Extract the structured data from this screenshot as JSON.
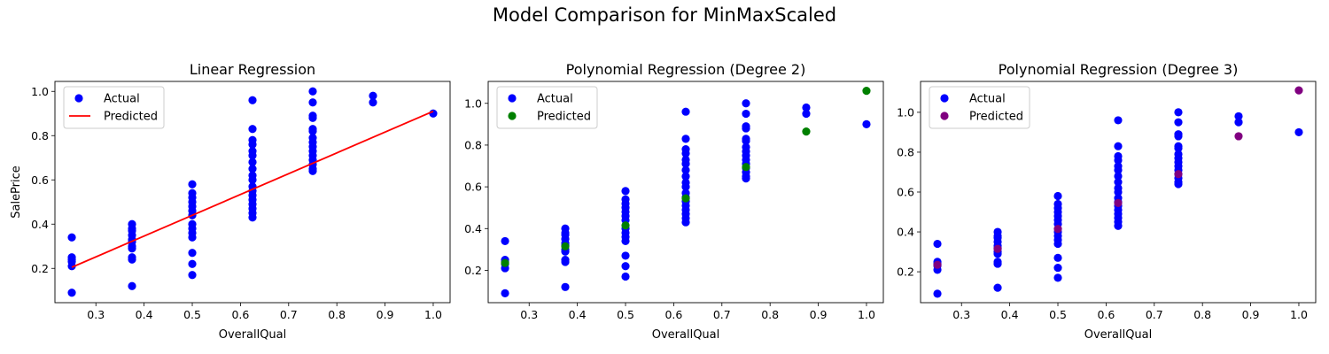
{
  "figure": {
    "suptitle": "Model Comparison for MinMaxScaled"
  },
  "colors": {
    "actual": "#0000ff",
    "linear_predicted": "#ff0000",
    "poly2_predicted": "#008000",
    "poly3_predicted": "#800080"
  },
  "chart_data": [
    {
      "type": "scatter",
      "title": "Linear Regression",
      "xlabel": "OverallQual",
      "ylabel": "SalePrice",
      "xlim": [
        0.215,
        1.035
      ],
      "ylim": [
        0.045,
        1.045
      ],
      "xticks": [
        "0.3",
        "0.4",
        "0.5",
        "0.6",
        "0.7",
        "0.8",
        "0.9",
        "1.0"
      ],
      "yticks": [
        "0.2",
        "0.4",
        "0.6",
        "0.8",
        "1.0"
      ],
      "legend_position": "upper-left",
      "series": [
        {
          "name": "Actual",
          "kind": "scatter",
          "color": "#0000ff",
          "points": [
            [
              0.25,
              0.09
            ],
            [
              0.25,
              0.21
            ],
            [
              0.25,
              0.23
            ],
            [
              0.25,
              0.24
            ],
            [
              0.25,
              0.25
            ],
            [
              0.25,
              0.34
            ],
            [
              0.375,
              0.12
            ],
            [
              0.375,
              0.24
            ],
            [
              0.375,
              0.25
            ],
            [
              0.375,
              0.29
            ],
            [
              0.375,
              0.3
            ],
            [
              0.375,
              0.32
            ],
            [
              0.375,
              0.33
            ],
            [
              0.375,
              0.35
            ],
            [
              0.375,
              0.37
            ],
            [
              0.375,
              0.38
            ],
            [
              0.375,
              0.4
            ],
            [
              0.5,
              0.17
            ],
            [
              0.5,
              0.22
            ],
            [
              0.5,
              0.27
            ],
            [
              0.5,
              0.34
            ],
            [
              0.5,
              0.36
            ],
            [
              0.5,
              0.38
            ],
            [
              0.5,
              0.4
            ],
            [
              0.5,
              0.44
            ],
            [
              0.5,
              0.46
            ],
            [
              0.5,
              0.48
            ],
            [
              0.5,
              0.5
            ],
            [
              0.5,
              0.52
            ],
            [
              0.5,
              0.54
            ],
            [
              0.5,
              0.58
            ],
            [
              0.625,
              0.43
            ],
            [
              0.625,
              0.45
            ],
            [
              0.625,
              0.47
            ],
            [
              0.625,
              0.49
            ],
            [
              0.625,
              0.51
            ],
            [
              0.625,
              0.53
            ],
            [
              0.625,
              0.55
            ],
            [
              0.625,
              0.57
            ],
            [
              0.625,
              0.6
            ],
            [
              0.625,
              0.62
            ],
            [
              0.625,
              0.65
            ],
            [
              0.625,
              0.68
            ],
            [
              0.625,
              0.71
            ],
            [
              0.625,
              0.73
            ],
            [
              0.625,
              0.76
            ],
            [
              0.625,
              0.78
            ],
            [
              0.625,
              0.83
            ],
            [
              0.625,
              0.96
            ],
            [
              0.75,
              0.64
            ],
            [
              0.75,
              0.65
            ],
            [
              0.75,
              0.67
            ],
            [
              0.75,
              0.69
            ],
            [
              0.75,
              0.71
            ],
            [
              0.75,
              0.73
            ],
            [
              0.75,
              0.75
            ],
            [
              0.75,
              0.77
            ],
            [
              0.75,
              0.79
            ],
            [
              0.75,
              0.82
            ],
            [
              0.75,
              0.83
            ],
            [
              0.75,
              0.88
            ],
            [
              0.75,
              0.89
            ],
            [
              0.75,
              0.95
            ],
            [
              0.75,
              1.0
            ],
            [
              0.875,
              0.95
            ],
            [
              0.875,
              0.98
            ],
            [
              1.0,
              0.9
            ]
          ]
        },
        {
          "name": "Predicted",
          "kind": "line",
          "color": "#ff0000",
          "points": [
            [
              0.25,
              0.205
            ],
            [
              1.0,
              0.91
            ]
          ]
        }
      ]
    },
    {
      "type": "scatter",
      "title": "Polynomial Regression (Degree 2)",
      "xlabel": "OverallQual",
      "ylabel": "",
      "xlim": [
        0.215,
        1.035
      ],
      "ylim": [
        0.045,
        1.105
      ],
      "xticks": [
        "0.3",
        "0.4",
        "0.5",
        "0.6",
        "0.7",
        "0.8",
        "0.9",
        "1.0"
      ],
      "yticks": [
        "0.2",
        "0.4",
        "0.6",
        "0.8",
        "1.0"
      ],
      "legend_position": "upper-left",
      "series": [
        {
          "name": "Actual",
          "kind": "scatter",
          "color": "#0000ff",
          "points": [
            [
              0.25,
              0.09
            ],
            [
              0.25,
              0.21
            ],
            [
              0.25,
              0.23
            ],
            [
              0.25,
              0.24
            ],
            [
              0.25,
              0.25
            ],
            [
              0.25,
              0.34
            ],
            [
              0.375,
              0.12
            ],
            [
              0.375,
              0.24
            ],
            [
              0.375,
              0.25
            ],
            [
              0.375,
              0.29
            ],
            [
              0.375,
              0.3
            ],
            [
              0.375,
              0.32
            ],
            [
              0.375,
              0.33
            ],
            [
              0.375,
              0.35
            ],
            [
              0.375,
              0.37
            ],
            [
              0.375,
              0.38
            ],
            [
              0.375,
              0.4
            ],
            [
              0.5,
              0.17
            ],
            [
              0.5,
              0.22
            ],
            [
              0.5,
              0.27
            ],
            [
              0.5,
              0.34
            ],
            [
              0.5,
              0.36
            ],
            [
              0.5,
              0.38
            ],
            [
              0.5,
              0.4
            ],
            [
              0.5,
              0.44
            ],
            [
              0.5,
              0.46
            ],
            [
              0.5,
              0.48
            ],
            [
              0.5,
              0.5
            ],
            [
              0.5,
              0.52
            ],
            [
              0.5,
              0.54
            ],
            [
              0.5,
              0.58
            ],
            [
              0.625,
              0.43
            ],
            [
              0.625,
              0.45
            ],
            [
              0.625,
              0.47
            ],
            [
              0.625,
              0.49
            ],
            [
              0.625,
              0.51
            ],
            [
              0.625,
              0.53
            ],
            [
              0.625,
              0.55
            ],
            [
              0.625,
              0.57
            ],
            [
              0.625,
              0.6
            ],
            [
              0.625,
              0.62
            ],
            [
              0.625,
              0.65
            ],
            [
              0.625,
              0.68
            ],
            [
              0.625,
              0.71
            ],
            [
              0.625,
              0.73
            ],
            [
              0.625,
              0.76
            ],
            [
              0.625,
              0.78
            ],
            [
              0.625,
              0.83
            ],
            [
              0.625,
              0.96
            ],
            [
              0.75,
              0.64
            ],
            [
              0.75,
              0.65
            ],
            [
              0.75,
              0.67
            ],
            [
              0.75,
              0.69
            ],
            [
              0.75,
              0.71
            ],
            [
              0.75,
              0.73
            ],
            [
              0.75,
              0.75
            ],
            [
              0.75,
              0.77
            ],
            [
              0.75,
              0.79
            ],
            [
              0.75,
              0.82
            ],
            [
              0.75,
              0.83
            ],
            [
              0.75,
              0.88
            ],
            [
              0.75,
              0.89
            ],
            [
              0.75,
              0.95
            ],
            [
              0.75,
              1.0
            ],
            [
              0.875,
              0.95
            ],
            [
              0.875,
              0.98
            ],
            [
              1.0,
              0.9
            ]
          ]
        },
        {
          "name": "Predicted",
          "kind": "scatter",
          "color": "#008000",
          "points": [
            [
              0.25,
              0.235
            ],
            [
              0.375,
              0.315
            ],
            [
              0.5,
              0.415
            ],
            [
              0.625,
              0.545
            ],
            [
              0.75,
              0.695
            ],
            [
              0.875,
              0.865
            ],
            [
              1.0,
              1.06
            ]
          ]
        }
      ]
    },
    {
      "type": "scatter",
      "title": "Polynomial Regression (Degree 3)",
      "xlabel": "OverallQual",
      "ylabel": "",
      "xlim": [
        0.215,
        1.035
      ],
      "ylim": [
        0.045,
        1.155
      ],
      "xticks": [
        "0.3",
        "0.4",
        "0.5",
        "0.6",
        "0.7",
        "0.8",
        "0.9",
        "1.0"
      ],
      "yticks": [
        "0.2",
        "0.4",
        "0.6",
        "0.8",
        "1.0"
      ],
      "legend_position": "upper-left",
      "series": [
        {
          "name": "Actual",
          "kind": "scatter",
          "color": "#0000ff",
          "points": [
            [
              0.25,
              0.09
            ],
            [
              0.25,
              0.21
            ],
            [
              0.25,
              0.23
            ],
            [
              0.25,
              0.24
            ],
            [
              0.25,
              0.25
            ],
            [
              0.25,
              0.34
            ],
            [
              0.375,
              0.12
            ],
            [
              0.375,
              0.24
            ],
            [
              0.375,
              0.25
            ],
            [
              0.375,
              0.29
            ],
            [
              0.375,
              0.3
            ],
            [
              0.375,
              0.32
            ],
            [
              0.375,
              0.33
            ],
            [
              0.375,
              0.35
            ],
            [
              0.375,
              0.37
            ],
            [
              0.375,
              0.38
            ],
            [
              0.375,
              0.4
            ],
            [
              0.5,
              0.17
            ],
            [
              0.5,
              0.22
            ],
            [
              0.5,
              0.27
            ],
            [
              0.5,
              0.34
            ],
            [
              0.5,
              0.36
            ],
            [
              0.5,
              0.38
            ],
            [
              0.5,
              0.4
            ],
            [
              0.5,
              0.44
            ],
            [
              0.5,
              0.46
            ],
            [
              0.5,
              0.48
            ],
            [
              0.5,
              0.5
            ],
            [
              0.5,
              0.52
            ],
            [
              0.5,
              0.54
            ],
            [
              0.5,
              0.58
            ],
            [
              0.625,
              0.43
            ],
            [
              0.625,
              0.45
            ],
            [
              0.625,
              0.47
            ],
            [
              0.625,
              0.49
            ],
            [
              0.625,
              0.51
            ],
            [
              0.625,
              0.53
            ],
            [
              0.625,
              0.55
            ],
            [
              0.625,
              0.57
            ],
            [
              0.625,
              0.6
            ],
            [
              0.625,
              0.62
            ],
            [
              0.625,
              0.65
            ],
            [
              0.625,
              0.68
            ],
            [
              0.625,
              0.71
            ],
            [
              0.625,
              0.73
            ],
            [
              0.625,
              0.76
            ],
            [
              0.625,
              0.78
            ],
            [
              0.625,
              0.83
            ],
            [
              0.625,
              0.96
            ],
            [
              0.75,
              0.64
            ],
            [
              0.75,
              0.65
            ],
            [
              0.75,
              0.67
            ],
            [
              0.75,
              0.69
            ],
            [
              0.75,
              0.71
            ],
            [
              0.75,
              0.73
            ],
            [
              0.75,
              0.75
            ],
            [
              0.75,
              0.77
            ],
            [
              0.75,
              0.79
            ],
            [
              0.75,
              0.82
            ],
            [
              0.75,
              0.83
            ],
            [
              0.75,
              0.88
            ],
            [
              0.75,
              0.89
            ],
            [
              0.75,
              0.95
            ],
            [
              0.75,
              1.0
            ],
            [
              0.875,
              0.95
            ],
            [
              0.875,
              0.98
            ],
            [
              1.0,
              0.9
            ]
          ]
        },
        {
          "name": "Predicted",
          "kind": "scatter",
          "color": "#800080",
          "points": [
            [
              0.25,
              0.235
            ],
            [
              0.375,
              0.315
            ],
            [
              0.5,
              0.415
            ],
            [
              0.625,
              0.545
            ],
            [
              0.75,
              0.69
            ],
            [
              0.875,
              0.88
            ],
            [
              1.0,
              1.11
            ]
          ]
        }
      ]
    }
  ]
}
